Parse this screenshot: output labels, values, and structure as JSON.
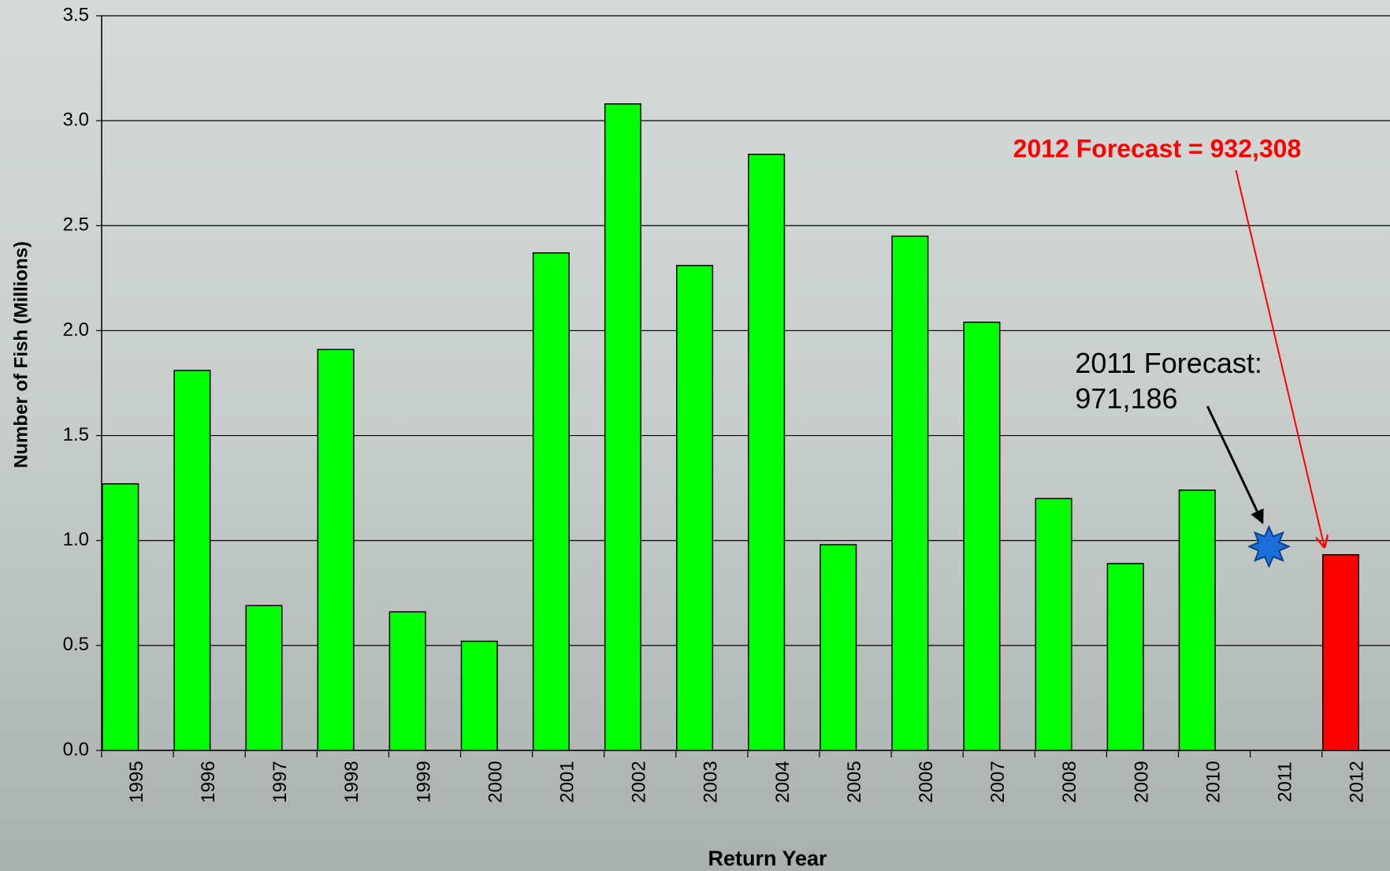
{
  "chart_data": {
    "type": "bar",
    "x_label": "Return Year",
    "y_label": "Number of Fish (Millions)",
    "categories": [
      "1995",
      "1996",
      "1997",
      "1998",
      "1999",
      "2000",
      "2001",
      "2002",
      "2003",
      "2004",
      "2005",
      "2006",
      "2007",
      "2008",
      "2009",
      "2010",
      "2011",
      "2012"
    ],
    "values": [
      1.27,
      1.81,
      0.69,
      1.91,
      0.66,
      0.52,
      2.37,
      3.08,
      2.31,
      2.84,
      0.98,
      2.45,
      2.04,
      1.2,
      0.89,
      1.24,
      null,
      0.932308
    ],
    "colors": [
      "#00ff00",
      "#00ff00",
      "#00ff00",
      "#00ff00",
      "#00ff00",
      "#00ff00",
      "#00ff00",
      "#00ff00",
      "#00ff00",
      "#00ff00",
      "#00ff00",
      "#00ff00",
      "#00ff00",
      "#00ff00",
      "#00ff00",
      "#00ff00",
      "#00ff00",
      "#ff0000"
    ],
    "ylim": [
      0,
      3.5
    ],
    "yticks": [
      {
        "value": 0,
        "label": "0.0"
      },
      0.5,
      {
        "value": 1,
        "label": "1.0"
      },
      1.5,
      {
        "value": 2,
        "label": "2.0"
      },
      2.5,
      {
        "value": 3,
        "label": "3.0"
      },
      3.5
    ],
    "grid": true,
    "annotations": [
      {
        "text": [
          "2012 Forecast = 932,308"
        ],
        "category": "2012",
        "color": "#ff0000",
        "bold": true
      },
      {
        "text": [
          "2011 Forecast:",
          "971,186"
        ],
        "category": "2011",
        "value": 0.971186,
        "color": "#000000",
        "marker": "star",
        "marker_color": "#1a6fd8"
      }
    ]
  }
}
